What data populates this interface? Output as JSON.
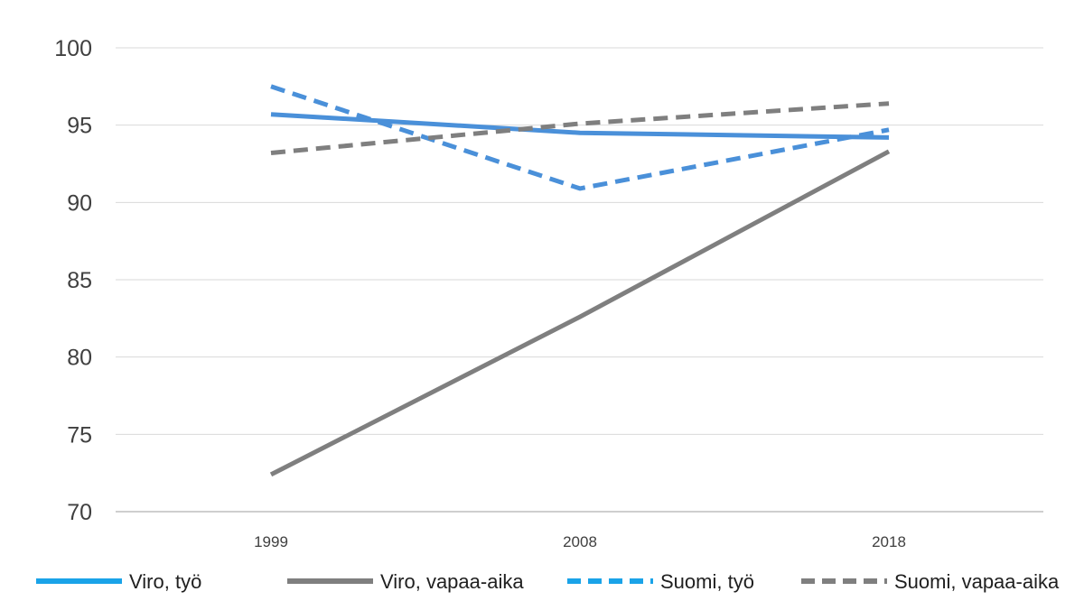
{
  "chart_data": {
    "type": "line",
    "title": "",
    "xlabel": "",
    "ylabel": "",
    "categories": [
      "1999",
      "2008",
      "2018"
    ],
    "ylim": [
      70,
      100
    ],
    "yticks": [
      "70",
      "75",
      "80",
      "85",
      "90",
      "95",
      "100"
    ],
    "grid": true,
    "legend": "bottom",
    "series": [
      {
        "name": "Viro, työ",
        "values": [
          95.7,
          94.5,
          94.2
        ],
        "color": "#4a90d9",
        "dash": "solid"
      },
      {
        "name": "Viro, vapaa-aika",
        "values": [
          72.4,
          82.6,
          93.3
        ],
        "color": "#7f7f7f",
        "dash": "solid"
      },
      {
        "name": "Suomi, työ",
        "values": [
          97.5,
          90.9,
          94.7
        ],
        "color": "#4a90d9",
        "dash": "dashed"
      },
      {
        "name": "Suomi, vapaa-aika",
        "values": [
          93.2,
          95.1,
          96.4
        ],
        "color": "#7f7f7f",
        "dash": "dashed"
      }
    ],
    "legend_colors": {
      "solid_blue": "#1aa3e8",
      "dashed_blue": "#1aa3e8"
    }
  }
}
